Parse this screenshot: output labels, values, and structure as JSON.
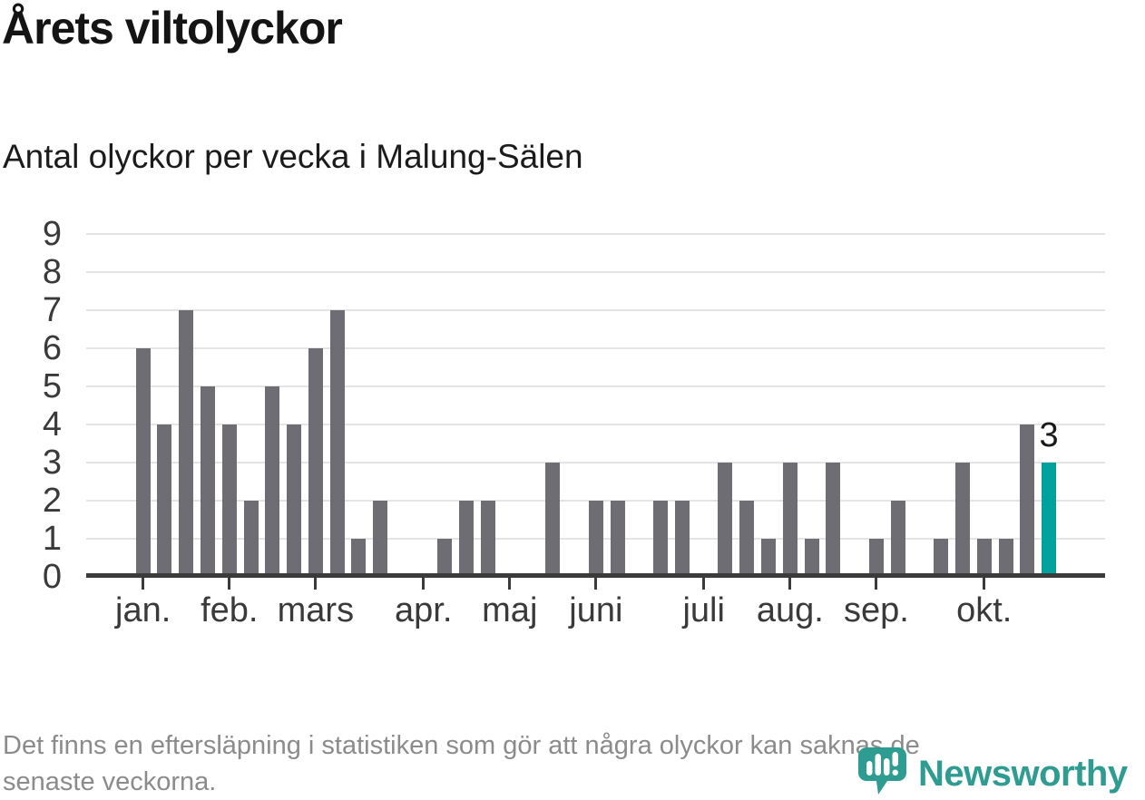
{
  "header": {
    "title": "Årets viltolyckor",
    "subtitle": "Antal olyckor per vecka i Malung-Sälen"
  },
  "chart_data": {
    "type": "bar",
    "x_unit": "vecka (week of year)",
    "values": [
      6,
      4,
      7,
      5,
      4,
      2,
      5,
      4,
      6,
      7,
      1,
      2,
      0,
      0,
      1,
      2,
      2,
      0,
      0,
      3,
      0,
      2,
      2,
      0,
      2,
      2,
      0,
      3,
      2,
      1,
      3,
      1,
      3,
      0,
      1,
      2,
      0,
      1,
      3,
      1,
      1,
      4,
      3
    ],
    "ylim": [
      0,
      9
    ],
    "yticks": [
      0,
      1,
      2,
      3,
      4,
      5,
      6,
      7,
      8,
      9
    ],
    "month_ticks": [
      {
        "label": "jan.",
        "week_index": 0
      },
      {
        "label": "feb.",
        "week_index": 4
      },
      {
        "label": "mars",
        "week_index": 8
      },
      {
        "label": "apr.",
        "week_index": 13
      },
      {
        "label": "maj",
        "week_index": 17
      },
      {
        "label": "juni",
        "week_index": 21
      },
      {
        "label": "juli",
        "week_index": 26
      },
      {
        "label": "aug.",
        "week_index": 30
      },
      {
        "label": "sep.",
        "week_index": 34
      },
      {
        "label": "okt.",
        "week_index": 39
      }
    ],
    "annotation": {
      "text": "3",
      "week_index": 42
    },
    "bar_color": "#6d6d73",
    "highlight_last": true,
    "highlight_color": "#00a39c",
    "gridline_color": "#e4e4e4",
    "axis_color": "#3b3b3b",
    "grid": "horizontal",
    "legend": "none"
  },
  "footer": {
    "lines": [
      "Det finns en eftersläpning i statistiken som gör att några olyckor kan saknas de",
      "senaste veckorna."
    ]
  },
  "logo": {
    "name": "Newsworthy",
    "icon": "newsworthy-chart-bubble-icon",
    "color": "#2e9c90"
  }
}
